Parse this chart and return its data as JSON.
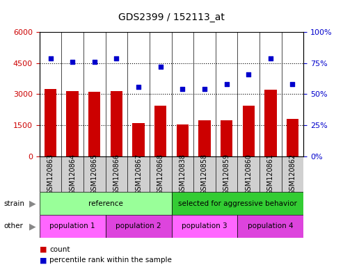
{
  "title": "GDS2399 / 152113_at",
  "samples": [
    "GSM120863",
    "GSM120864",
    "GSM120865",
    "GSM120866",
    "GSM120867",
    "GSM120868",
    "GSM120838",
    "GSM120858",
    "GSM120859",
    "GSM120860",
    "GSM120861",
    "GSM120862"
  ],
  "counts": [
    3250,
    3150,
    3100,
    3150,
    1600,
    2450,
    1550,
    1750,
    1750,
    2450,
    3200,
    1800
  ],
  "percentile_ranks": [
    79,
    76,
    76,
    79,
    56,
    72,
    54,
    54,
    58,
    66,
    79,
    58
  ],
  "bar_color": "#cc0000",
  "dot_color": "#0000cc",
  "ylim_left": [
    0,
    6000
  ],
  "ylim_right": [
    0,
    100
  ],
  "yticks_left": [
    0,
    1500,
    3000,
    4500,
    6000
  ],
  "yticks_right": [
    0,
    25,
    50,
    75,
    100
  ],
  "grid_values": [
    1500,
    3000,
    4500
  ],
  "strain_groups": [
    {
      "label": "reference",
      "start": 0,
      "end": 6,
      "color": "#99ff99"
    },
    {
      "label": "selected for aggressive behavior",
      "start": 6,
      "end": 12,
      "color": "#33cc33"
    }
  ],
  "other_groups": [
    {
      "label": "population 1",
      "start": 0,
      "end": 3,
      "color": "#ff66ff"
    },
    {
      "label": "population 2",
      "start": 3,
      "end": 6,
      "color": "#dd44dd"
    },
    {
      "label": "population 3",
      "start": 6,
      "end": 9,
      "color": "#ff66ff"
    },
    {
      "label": "population 4",
      "start": 9,
      "end": 12,
      "color": "#dd44dd"
    }
  ],
  "strain_label": "strain",
  "other_label": "other",
  "legend_count_label": "count",
  "legend_pct_label": "percentile rank within the sample",
  "bg_color": "#ffffff",
  "tick_label_color_left": "#cc0000",
  "tick_label_color_right": "#0000cc",
  "bar_width": 0.55,
  "figsize": [
    4.93,
    3.84
  ],
  "dpi": 100
}
